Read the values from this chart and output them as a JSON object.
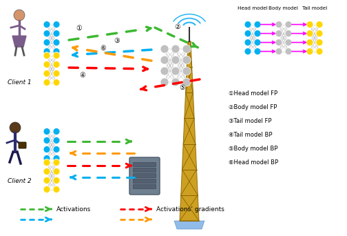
{
  "bg_color": "#ffffff",
  "step_labels": [
    "①Head model FP",
    "②Body model FP",
    "③Tail model FP",
    "④Tail model BP",
    "⑤Body model BP",
    "⑥Head model BP"
  ],
  "model_labels": [
    "Head model",
    "Body model",
    "Tail model"
  ],
  "client_labels": [
    "Client 1",
    "Client 2"
  ],
  "arrow_colors": {
    "green": "#3db832",
    "cyan": "#00b0f0",
    "red": "#ff0000",
    "orange": "#ff9900"
  },
  "node_colors": {
    "cyan": "#00b0f0",
    "yellow": "#ffd700",
    "pink": "#ff00ff",
    "gray": "#c0c0c0"
  },
  "legend_green": "Activations",
  "legend_gradients": "Activations’ gradients"
}
